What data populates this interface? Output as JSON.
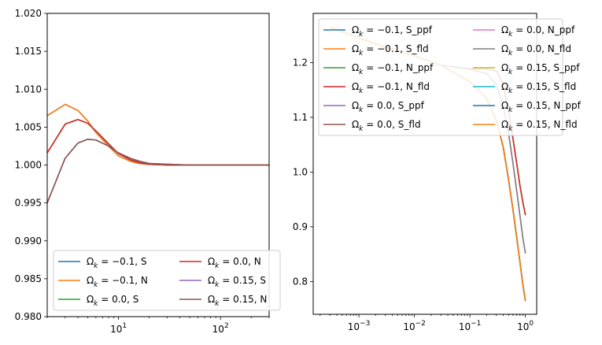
{
  "chart_data": [
    {
      "type": "line",
      "title": "",
      "xlabel": "",
      "ylabel": "",
      "xscale": "log",
      "xlim": [
        2,
        300
      ],
      "ylim": [
        0.98,
        1.02
      ],
      "grid": false,
      "legend_position": "lower-right",
      "legend_columns": 2,
      "xticks": [
        {
          "value": 10,
          "base": "10",
          "exp": "1"
        },
        {
          "value": 100,
          "base": "10",
          "exp": "2"
        }
      ],
      "yticks": [
        {
          "value": 0.98,
          "label": "0.980"
        },
        {
          "value": 0.985,
          "label": "0.985"
        },
        {
          "value": 0.99,
          "label": "0.990"
        },
        {
          "value": 0.995,
          "label": "0.995"
        },
        {
          "value": 1.0,
          "label": "1.000"
        },
        {
          "value": 1.005,
          "label": "1.005"
        },
        {
          "value": 1.01,
          "label": "1.010"
        },
        {
          "value": 1.015,
          "label": "1.015"
        },
        {
          "value": 1.02,
          "label": "1.020"
        }
      ],
      "series": [
        {
          "name": "Ω_k = -0.1, S",
          "color": "#1f77b4",
          "x": [
            2,
            3,
            4,
            5,
            6,
            8,
            10,
            13,
            16,
            20,
            30,
            50,
            100,
            200,
            300
          ],
          "y": [
            1.0065,
            1.008,
            1.0072,
            1.0058,
            1.0043,
            1.0025,
            1.0012,
            1.0005,
            1.0002,
            1.0001,
            1.0,
            1.0,
            1.0,
            1.0,
            1.0
          ]
        },
        {
          "name": "Ω_k = -0.1, N",
          "color": "#ff7f0e",
          "x": [
            2,
            3,
            4,
            5,
            6,
            8,
            10,
            13,
            16,
            20,
            30,
            50,
            100,
            200,
            300
          ],
          "y": [
            1.0065,
            1.008,
            1.0072,
            1.0058,
            1.0043,
            1.0025,
            1.0012,
            1.0005,
            1.0002,
            1.0001,
            1.0,
            1.0,
            1.0,
            1.0,
            1.0
          ]
        },
        {
          "name": "Ω_k = 0.0, S",
          "color": "#2ca02c",
          "x": [
            2,
            3,
            4,
            5,
            6,
            8,
            10,
            13,
            16,
            20,
            30,
            50,
            100,
            200,
            300
          ],
          "y": [
            1.0016,
            1.0054,
            1.006,
            1.0055,
            1.0045,
            1.0028,
            1.0015,
            1.0007,
            1.0003,
            1.0001,
            1.0,
            1.0,
            1.0,
            1.0,
            1.0
          ]
        },
        {
          "name": "Ω_k = 0.0, N",
          "color": "#d62728",
          "x": [
            2,
            3,
            4,
            5,
            6,
            8,
            10,
            13,
            16,
            20,
            30,
            50,
            100,
            200,
            300
          ],
          "y": [
            1.0016,
            1.0054,
            1.006,
            1.0055,
            1.0045,
            1.0028,
            1.0015,
            1.0007,
            1.0003,
            1.0001,
            1.0,
            1.0,
            1.0,
            1.0,
            1.0
          ]
        },
        {
          "name": "Ω_k = 0.15, S",
          "color": "#9467bd",
          "x": [
            2,
            3,
            4,
            5,
            6,
            8,
            10,
            13,
            16,
            20,
            30,
            50,
            100,
            200,
            300
          ],
          "y": [
            0.995,
            1.0009,
            1.0029,
            1.0034,
            1.0033,
            1.0025,
            1.0016,
            1.0009,
            1.0005,
            1.0002,
            1.0001,
            1.0,
            1.0,
            1.0,
            1.0
          ]
        },
        {
          "name": "Ω_k = 0.15, N",
          "color": "#8c564b",
          "x": [
            2,
            3,
            4,
            5,
            6,
            8,
            10,
            13,
            16,
            20,
            30,
            50,
            100,
            200,
            300
          ],
          "y": [
            0.995,
            1.0009,
            1.0029,
            1.0034,
            1.0033,
            1.0025,
            1.0016,
            1.0009,
            1.0005,
            1.0002,
            1.0001,
            1.0,
            1.0,
            1.0,
            1.0
          ]
        }
      ]
    },
    {
      "type": "line",
      "title": "",
      "xlabel": "",
      "ylabel": "",
      "xscale": "log",
      "xlim": [
        0.00015,
        1.6
      ],
      "ylim": [
        0.74,
        1.29
      ],
      "grid": false,
      "legend_position": "upper-right",
      "legend_columns": 2,
      "xticks": [
        {
          "value": 0.001,
          "base": "10",
          "exp": "−3"
        },
        {
          "value": 0.01,
          "base": "10",
          "exp": "−2"
        },
        {
          "value": 0.1,
          "base": "10",
          "exp": "−1"
        },
        {
          "value": 1,
          "base": "10",
          "exp": "0"
        }
      ],
      "yticks": [
        {
          "value": 0.8,
          "label": "0.8"
        },
        {
          "value": 0.9,
          "label": "0.9"
        },
        {
          "value": 1.0,
          "label": "1.0"
        },
        {
          "value": 1.1,
          "label": "1.1"
        },
        {
          "value": 1.2,
          "label": "1.2"
        }
      ],
      "series": [
        {
          "name": "Ω_k = -0.1, S_ppf",
          "color": "#1f77b4",
          "x": [
            0.0003,
            0.001,
            0.003,
            0.01,
            0.03,
            0.1,
            0.2,
            0.3,
            0.4,
            0.5,
            0.6,
            0.7,
            0.8,
            0.9,
            1.0
          ],
          "y": [
            1.265,
            1.245,
            1.228,
            1.213,
            1.195,
            1.165,
            1.135,
            1.095,
            1.045,
            0.985,
            0.93,
            0.88,
            0.835,
            0.795,
            0.765
          ]
        },
        {
          "name": "Ω_k = -0.1, S_fld",
          "color": "#ff7f0e",
          "x": [
            0.0003,
            0.001,
            0.003,
            0.01,
            0.03,
            0.1,
            0.2,
            0.3,
            0.4,
            0.5,
            0.6,
            0.7,
            0.8,
            0.9,
            1.0
          ],
          "y": [
            1.265,
            1.245,
            1.228,
            1.213,
            1.195,
            1.165,
            1.135,
            1.095,
            1.045,
            0.985,
            0.93,
            0.88,
            0.835,
            0.795,
            0.765
          ]
        },
        {
          "name": "Ω_k = -0.1, N_ppf",
          "color": "#2ca02c",
          "x": [
            0.03,
            0.1,
            0.2,
            0.3,
            0.4,
            0.5,
            0.6,
            0.7,
            0.8,
            0.9,
            1.0
          ],
          "y": [
            1.195,
            1.189,
            1.188,
            1.185,
            1.16,
            1.11,
            1.06,
            1.015,
            0.975,
            0.945,
            0.922
          ]
        },
        {
          "name": "Ω_k = -0.1, N_fld",
          "color": "#d62728",
          "x": [
            0.03,
            0.1,
            0.2,
            0.3,
            0.4,
            0.5,
            0.6,
            0.7,
            0.8,
            0.9,
            1.0
          ],
          "y": [
            1.195,
            1.189,
            1.188,
            1.185,
            1.16,
            1.11,
            1.06,
            1.015,
            0.975,
            0.945,
            0.922
          ]
        },
        {
          "name": "Ω_k = 0.0, S_ppf",
          "color": "#9467bd",
          "x": [
            0.0003,
            0.001,
            0.003,
            0.01,
            0.03,
            0.1,
            0.2,
            0.3,
            0.4,
            0.5,
            0.6,
            0.7,
            0.8,
            0.9,
            1.0
          ],
          "y": [
            1.265,
            1.245,
            1.228,
            1.213,
            1.195,
            1.165,
            1.135,
            1.095,
            1.045,
            0.985,
            0.93,
            0.88,
            0.835,
            0.795,
            0.765
          ]
        },
        {
          "name": "Ω_k = 0.0, S_fld",
          "color": "#8c564b",
          "x": [
            0.0003,
            0.001,
            0.003,
            0.01,
            0.03,
            0.1,
            0.2,
            0.3,
            0.4,
            0.5,
            0.6,
            0.7,
            0.8,
            0.9,
            1.0
          ],
          "y": [
            1.265,
            1.245,
            1.228,
            1.213,
            1.195,
            1.165,
            1.135,
            1.095,
            1.045,
            0.985,
            0.93,
            0.88,
            0.835,
            0.795,
            0.765
          ]
        },
        {
          "name": "Ω_k = 0.0, N_ppf",
          "color": "#e377c2",
          "x": [
            0.03,
            0.1,
            0.2,
            0.3,
            0.4,
            0.5,
            0.6,
            0.7,
            0.8,
            0.9,
            1.0
          ],
          "y": [
            1.195,
            1.188,
            1.18,
            1.16,
            1.12,
            1.07,
            1.015,
            0.965,
            0.92,
            0.88,
            0.852
          ]
        },
        {
          "name": "Ω_k = 0.0, N_fld",
          "color": "#7f7f7f",
          "x": [
            0.03,
            0.1,
            0.2,
            0.3,
            0.4,
            0.5,
            0.6,
            0.7,
            0.8,
            0.9,
            1.0
          ],
          "y": [
            1.195,
            1.188,
            1.18,
            1.16,
            1.12,
            1.07,
            1.015,
            0.965,
            0.92,
            0.88,
            0.852
          ]
        },
        {
          "name": "Ω_k = 0.15, S_ppf",
          "color": "#bcbd22",
          "x": [
            0.0003,
            0.001,
            0.003,
            0.01,
            0.03,
            0.1,
            0.2,
            0.3,
            0.4,
            0.5,
            0.6,
            0.7,
            0.8,
            0.9,
            1.0
          ],
          "y": [
            1.265,
            1.245,
            1.228,
            1.213,
            1.195,
            1.165,
            1.135,
            1.095,
            1.045,
            0.985,
            0.93,
            0.88,
            0.835,
            0.795,
            0.765
          ]
        },
        {
          "name": "Ω_k = 0.15, S_fld",
          "color": "#17becf",
          "x": [
            0.0003,
            0.001,
            0.003,
            0.01,
            0.03,
            0.1,
            0.2,
            0.3,
            0.4,
            0.5,
            0.6,
            0.7,
            0.8,
            0.9,
            1.0
          ],
          "y": [
            1.265,
            1.245,
            1.228,
            1.213,
            1.195,
            1.165,
            1.135,
            1.095,
            1.045,
            0.985,
            0.93,
            0.88,
            0.835,
            0.795,
            0.765
          ]
        },
        {
          "name": "Ω_k = 0.15, N_ppf",
          "color": "#1f77b4",
          "x": [
            0.0003,
            0.001,
            0.003,
            0.01,
            0.03,
            0.1,
            0.2,
            0.3,
            0.4,
            0.5,
            0.6,
            0.7,
            0.8,
            0.9,
            1.0
          ],
          "y": [
            1.265,
            1.245,
            1.228,
            1.213,
            1.195,
            1.165,
            1.135,
            1.095,
            1.045,
            0.985,
            0.93,
            0.88,
            0.835,
            0.795,
            0.765
          ]
        },
        {
          "name": "Ω_k = 0.15, N_fld",
          "color": "#ff7f0e",
          "x": [
            0.0003,
            0.001,
            0.003,
            0.01,
            0.03,
            0.1,
            0.2,
            0.3,
            0.4,
            0.5,
            0.6,
            0.7,
            0.8,
            0.9,
            1.0
          ],
          "y": [
            1.265,
            1.245,
            1.228,
            1.213,
            1.195,
            1.165,
            1.135,
            1.095,
            1.045,
            0.985,
            0.93,
            0.88,
            0.835,
            0.795,
            0.765
          ]
        }
      ]
    }
  ]
}
